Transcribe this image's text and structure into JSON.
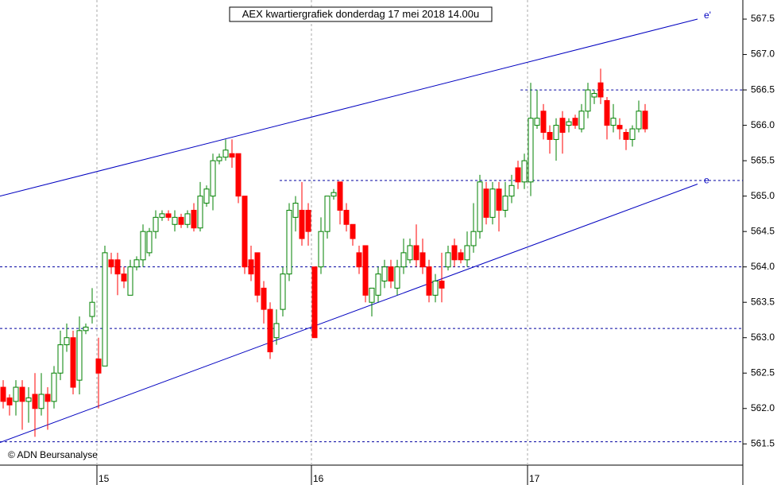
{
  "chart_data": {
    "type": "candlestick",
    "title": "AEX kwartiergrafiek donderdag 17 mei 2018 14.00u",
    "copyright": "© ADN Beursanalyse",
    "up_color": "#008000",
    "down_color": "#ff0000",
    "open": [
      562.3,
      562.15,
      562.1,
      562.3,
      562.1,
      562.2,
      562.0,
      562.2,
      562.1,
      562.5,
      562.9,
      563.0,
      562.4,
      563.1,
      563.3,
      562.7,
      562.6,
      564.1,
      564.1,
      563.9,
      563.6,
      564.0,
      564.1,
      564.2,
      564.5,
      564.7,
      564.75,
      564.6,
      564.7,
      564.6,
      564.8,
      564.55,
      564.9,
      565.0,
      565.5,
      565.55,
      565.6,
      565.6,
      565.0,
      564.1,
      564.2,
      563.7,
      563.4,
      563.0,
      563.4,
      563.9,
      564.7,
      564.8,
      564.8,
      564.0,
      564.0,
      564.5,
      565.0,
      565.2,
      564.8,
      564.6,
      564.2,
      564.3,
      563.5,
      563.6,
      563.8,
      564.0,
      563.7,
      564.0,
      564.1,
      564.3,
      564.2,
      564.0,
      563.6,
      563.8,
      564.0,
      564.3,
      564.2,
      564.1,
      564.3,
      564.5,
      565.1,
      564.7,
      565.1,
      564.8,
      565.0,
      565.4,
      565.2,
      565.2,
      566.0,
      566.2,
      565.9,
      565.8,
      566.1,
      566.0,
      566.1,
      565.95,
      566.2,
      566.4,
      566.6,
      566.35,
      566.0,
      566.0,
      565.9,
      565.8,
      565.95,
      566.2
    ],
    "high": [
      562.4,
      562.2,
      562.4,
      562.4,
      562.3,
      562.5,
      562.5,
      562.3,
      562.6,
      563.1,
      563.2,
      563.1,
      563.3,
      563.2,
      563.7,
      563.0,
      564.3,
      564.2,
      564.2,
      564.0,
      564.1,
      564.15,
      564.6,
      564.55,
      564.8,
      564.8,
      564.8,
      564.8,
      564.75,
      564.8,
      564.9,
      565.2,
      565.15,
      565.6,
      565.6,
      565.8,
      565.8,
      565.6,
      565.0,
      564.3,
      564.2,
      563.8,
      563.5,
      563.4,
      564.0,
      564.9,
      565.0,
      565.2,
      564.9,
      564.0,
      564.7,
      565.0,
      565.1,
      565.2,
      564.9,
      564.6,
      564.3,
      564.3,
      563.7,
      564.0,
      564.1,
      564.1,
      564.1,
      564.4,
      564.4,
      564.6,
      564.4,
      564.1,
      563.9,
      564.2,
      564.3,
      564.4,
      564.25,
      564.5,
      564.9,
      565.3,
      565.2,
      565.2,
      565.2,
      565.2,
      565.3,
      565.5,
      565.6,
      566.6,
      566.5,
      566.3,
      566.0,
      566.1,
      566.2,
      566.1,
      566.15,
      566.3,
      566.6,
      566.5,
      566.8,
      566.4,
      566.3,
      566.1,
      565.95,
      566.0,
      566.35,
      566.3
    ],
    "low": [
      562.0,
      561.9,
      561.9,
      561.7,
      561.8,
      561.6,
      561.9,
      561.7,
      562.0,
      562.4,
      562.8,
      562.2,
      562.2,
      563.05,
      563.2,
      562.0,
      562.6,
      563.9,
      563.6,
      563.7,
      563.6,
      563.95,
      564.0,
      564.15,
      564.4,
      564.65,
      564.65,
      564.5,
      564.55,
      564.55,
      564.5,
      564.5,
      564.85,
      564.8,
      565.45,
      565.5,
      565.4,
      564.9,
      563.9,
      563.8,
      563.5,
      563.2,
      562.7,
      562.9,
      563.3,
      563.8,
      564.5,
      564.3,
      564.3,
      563.0,
      563.9,
      564.4,
      564.95,
      564.6,
      564.5,
      564.3,
      563.9,
      563.5,
      563.3,
      563.5,
      563.7,
      563.7,
      563.6,
      563.9,
      564.05,
      564.0,
      563.9,
      563.5,
      563.5,
      563.5,
      563.95,
      564.0,
      564.05,
      564.0,
      564.2,
      564.4,
      564.6,
      564.6,
      564.5,
      564.7,
      564.9,
      565.1,
      565.1,
      565.0,
      565.95,
      565.8,
      565.6,
      565.5,
      565.6,
      565.9,
      565.95,
      565.9,
      566.1,
      566.3,
      566.3,
      565.8,
      565.9,
      565.8,
      565.65,
      565.7,
      565.9,
      565.9
    ],
    "close": [
      562.1,
      562.05,
      562.3,
      562.1,
      562.15,
      562.0,
      562.2,
      562.1,
      562.5,
      562.9,
      563.0,
      562.3,
      563.1,
      563.15,
      563.5,
      562.5,
      564.2,
      564.0,
      563.9,
      563.8,
      564.0,
      564.1,
      564.5,
      564.5,
      564.7,
      564.75,
      564.7,
      564.7,
      564.6,
      564.75,
      564.55,
      565.0,
      565.1,
      565.5,
      565.55,
      565.65,
      565.55,
      565.0,
      564.0,
      563.9,
      563.6,
      563.4,
      562.8,
      563.2,
      563.9,
      564.8,
      564.9,
      564.4,
      564.5,
      563.0,
      564.5,
      565.0,
      565.05,
      564.8,
      564.6,
      564.4,
      564.0,
      563.6,
      563.7,
      563.9,
      564.0,
      563.8,
      564.0,
      564.2,
      564.3,
      564.1,
      564.0,
      563.6,
      563.8,
      563.7,
      564.2,
      564.1,
      564.1,
      564.3,
      564.5,
      565.2,
      564.7,
      565.1,
      564.8,
      565.0,
      565.15,
      565.2,
      565.5,
      566.1,
      566.1,
      565.9,
      565.8,
      566.0,
      565.9,
      566.05,
      566.0,
      566.2,
      566.5,
      566.45,
      566.4,
      566.0,
      566.1,
      565.95,
      565.8,
      565.95,
      566.2,
      565.95
    ],
    "xlim": [
      -0.5,
      116.375
    ],
    "xticks": [
      {
        "value": 14.75,
        "label": "15"
      },
      {
        "value": 48.5,
        "label": "16"
      },
      {
        "value": 82.5,
        "label": "17"
      }
    ],
    "ylim": [
      561.2,
      567.77
    ],
    "yticks": [
      561.5,
      {
        "value": 562,
        "label": "562.0"
      },
      562.5,
      {
        "value": 563,
        "label": "563.0"
      },
      563.5,
      {
        "value": 564,
        "label": "564.0"
      },
      564.5,
      {
        "value": 565,
        "label": "565.0"
      },
      565.5,
      {
        "value": 566,
        "label": "566.0"
      },
      566.5,
      {
        "value": 567,
        "label": "567.0"
      },
      567.5
    ],
    "levels": [
      {
        "value": 566.5,
        "from": 81.4
      },
      {
        "value": 565.22,
        "from": 43.5
      },
      {
        "value": 564.0,
        "from": -0.5
      },
      {
        "value": 563.13,
        "from": -0.5
      },
      {
        "value": 561.53,
        "from": -0.5
      }
    ],
    "channels": [
      {
        "label": "e'",
        "x": [
          -0.5,
          109.25
        ],
        "y": [
          565.0,
          567.5
        ]
      },
      {
        "label": "e",
        "x": [
          -0.5,
          109.25
        ],
        "y": [
          561.52,
          565.17
        ]
      }
    ]
  }
}
